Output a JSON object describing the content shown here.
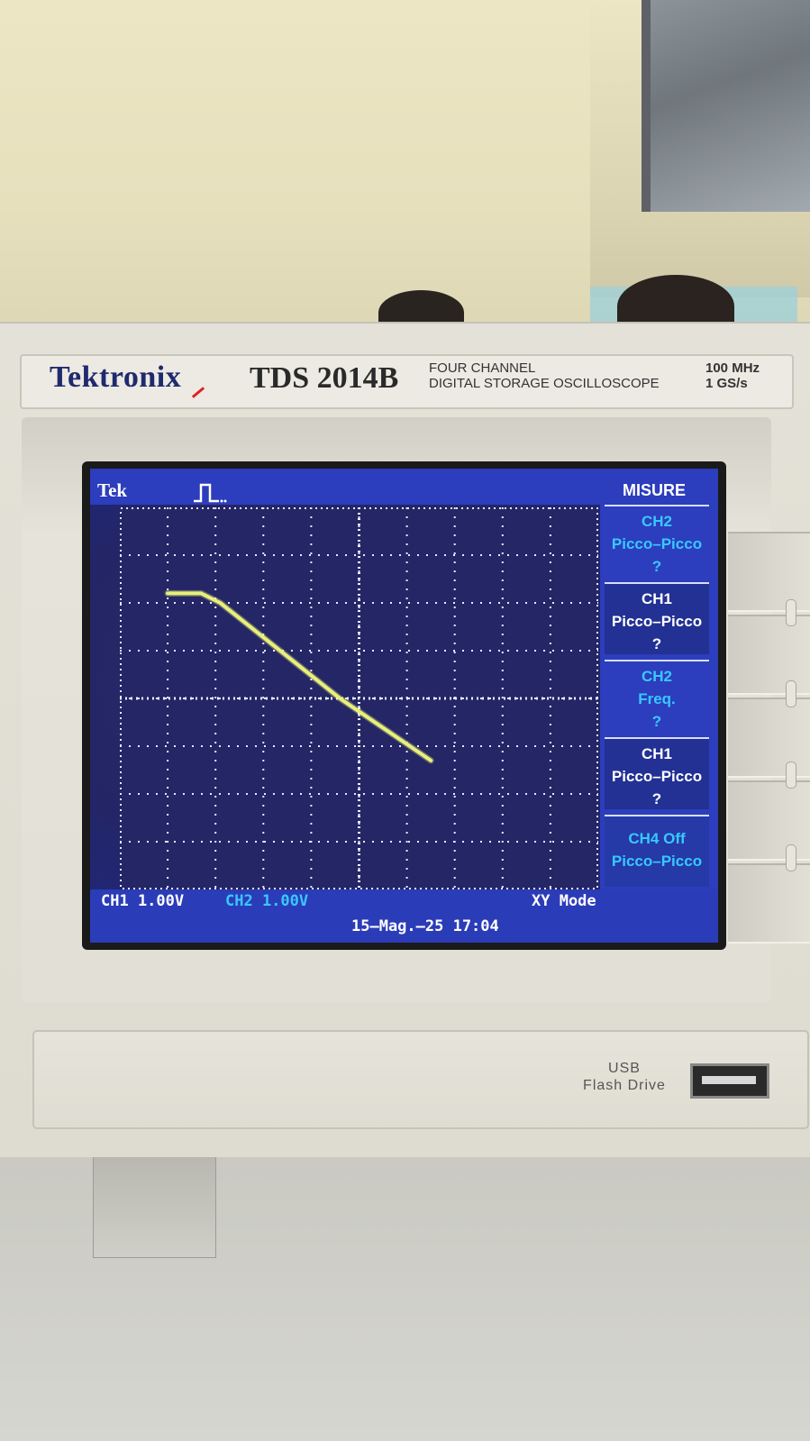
{
  "header": {
    "brand": "Tektronix",
    "model": "TDS 2014B",
    "description_line1": "FOUR  CHANNEL",
    "description_line2": "DIGITAL STORAGE OSCILLOSCOPE",
    "bandwidth": "100 MHz",
    "sample_rate": "1 GS/s"
  },
  "screen": {
    "logo": "Tek",
    "menu_title": "MISURE",
    "menu_items": [
      {
        "line1": "CH2",
        "line2": "Picco–Picco",
        "line3": "?"
      },
      {
        "line1": "CH1",
        "line2": "Picco–Picco",
        "line3": "?"
      },
      {
        "line1": "CH2",
        "line2": "Freq.",
        "line3": "?"
      },
      {
        "line1": "CH1",
        "line2": "Picco–Picco",
        "line3": "?"
      },
      {
        "line1": "CH4 Off",
        "line2": "Picco–Picco",
        "line3": ""
      }
    ],
    "ch1_scale": "CH1  1.00V",
    "ch2_scale": "CH2  1.00V",
    "mode": "XY Mode",
    "timestamp": "15–Mag.–25 17:04"
  },
  "trace": {
    "color": "#e8f07a",
    "points_div": [
      [
        -4.0,
        2.2
      ],
      [
        -3.3,
        2.2
      ],
      [
        -2.9,
        2.0
      ],
      [
        -0.4,
        0.0
      ],
      [
        1.5,
        -1.3
      ]
    ]
  },
  "ports": {
    "usb_line1": "USB",
    "usb_line2": "Flash Drive"
  }
}
